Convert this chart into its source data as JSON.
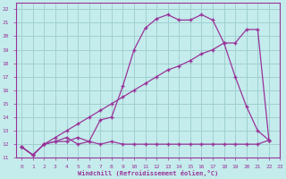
{
  "xlabel": "Windchill (Refroidissement éolien,°C)",
  "bg_color": "#c4ecec",
  "grid_color": "#a0d0d0",
  "line_color": "#993399",
  "xlim": [
    -0.5,
    23
  ],
  "ylim": [
    11,
    22.5
  ],
  "xticks": [
    0,
    1,
    2,
    3,
    4,
    5,
    6,
    7,
    8,
    9,
    10,
    11,
    12,
    13,
    14,
    15,
    16,
    17,
    18,
    19,
    20,
    21,
    22,
    23
  ],
  "yticks": [
    11,
    12,
    13,
    14,
    15,
    16,
    17,
    18,
    19,
    20,
    21,
    22
  ],
  "line1_x": [
    0,
    1,
    2,
    3,
    4,
    5,
    6,
    7,
    8,
    9,
    10,
    11,
    12,
    13,
    14,
    15,
    16,
    17,
    18,
    19,
    20,
    21,
    22
  ],
  "line1_y": [
    11.8,
    11.2,
    12.0,
    12.2,
    12.5,
    12.0,
    12.2,
    12.0,
    12.2,
    12.0,
    12.0,
    12.0,
    12.0,
    12.0,
    12.0,
    12.0,
    12.0,
    12.0,
    12.0,
    12.0,
    12.0,
    12.0,
    12.3
  ],
  "line2_x": [
    0,
    1,
    2,
    3,
    4,
    5,
    6,
    7,
    8,
    9,
    10,
    11,
    12,
    13,
    14,
    15,
    16,
    17,
    18,
    19,
    20,
    21,
    22
  ],
  "line2_y": [
    11.8,
    11.2,
    12.0,
    12.5,
    13.0,
    13.5,
    14.0,
    14.5,
    15.0,
    15.5,
    16.0,
    16.5,
    17.0,
    17.5,
    17.8,
    18.2,
    18.7,
    19.0,
    19.5,
    19.5,
    20.5,
    20.5,
    12.3
  ],
  "line3_x": [
    0,
    1,
    2,
    3,
    4,
    5,
    6,
    7,
    8,
    9,
    10,
    11,
    12,
    13,
    14,
    15,
    16,
    17,
    18,
    19,
    20,
    21,
    22
  ],
  "line3_y": [
    11.8,
    11.2,
    12.0,
    12.2,
    12.2,
    12.5,
    12.2,
    13.8,
    14.0,
    16.3,
    19.0,
    20.6,
    21.3,
    21.6,
    21.2,
    21.2,
    21.6,
    21.2,
    19.5,
    17.0,
    14.8,
    13.0,
    12.3
  ]
}
